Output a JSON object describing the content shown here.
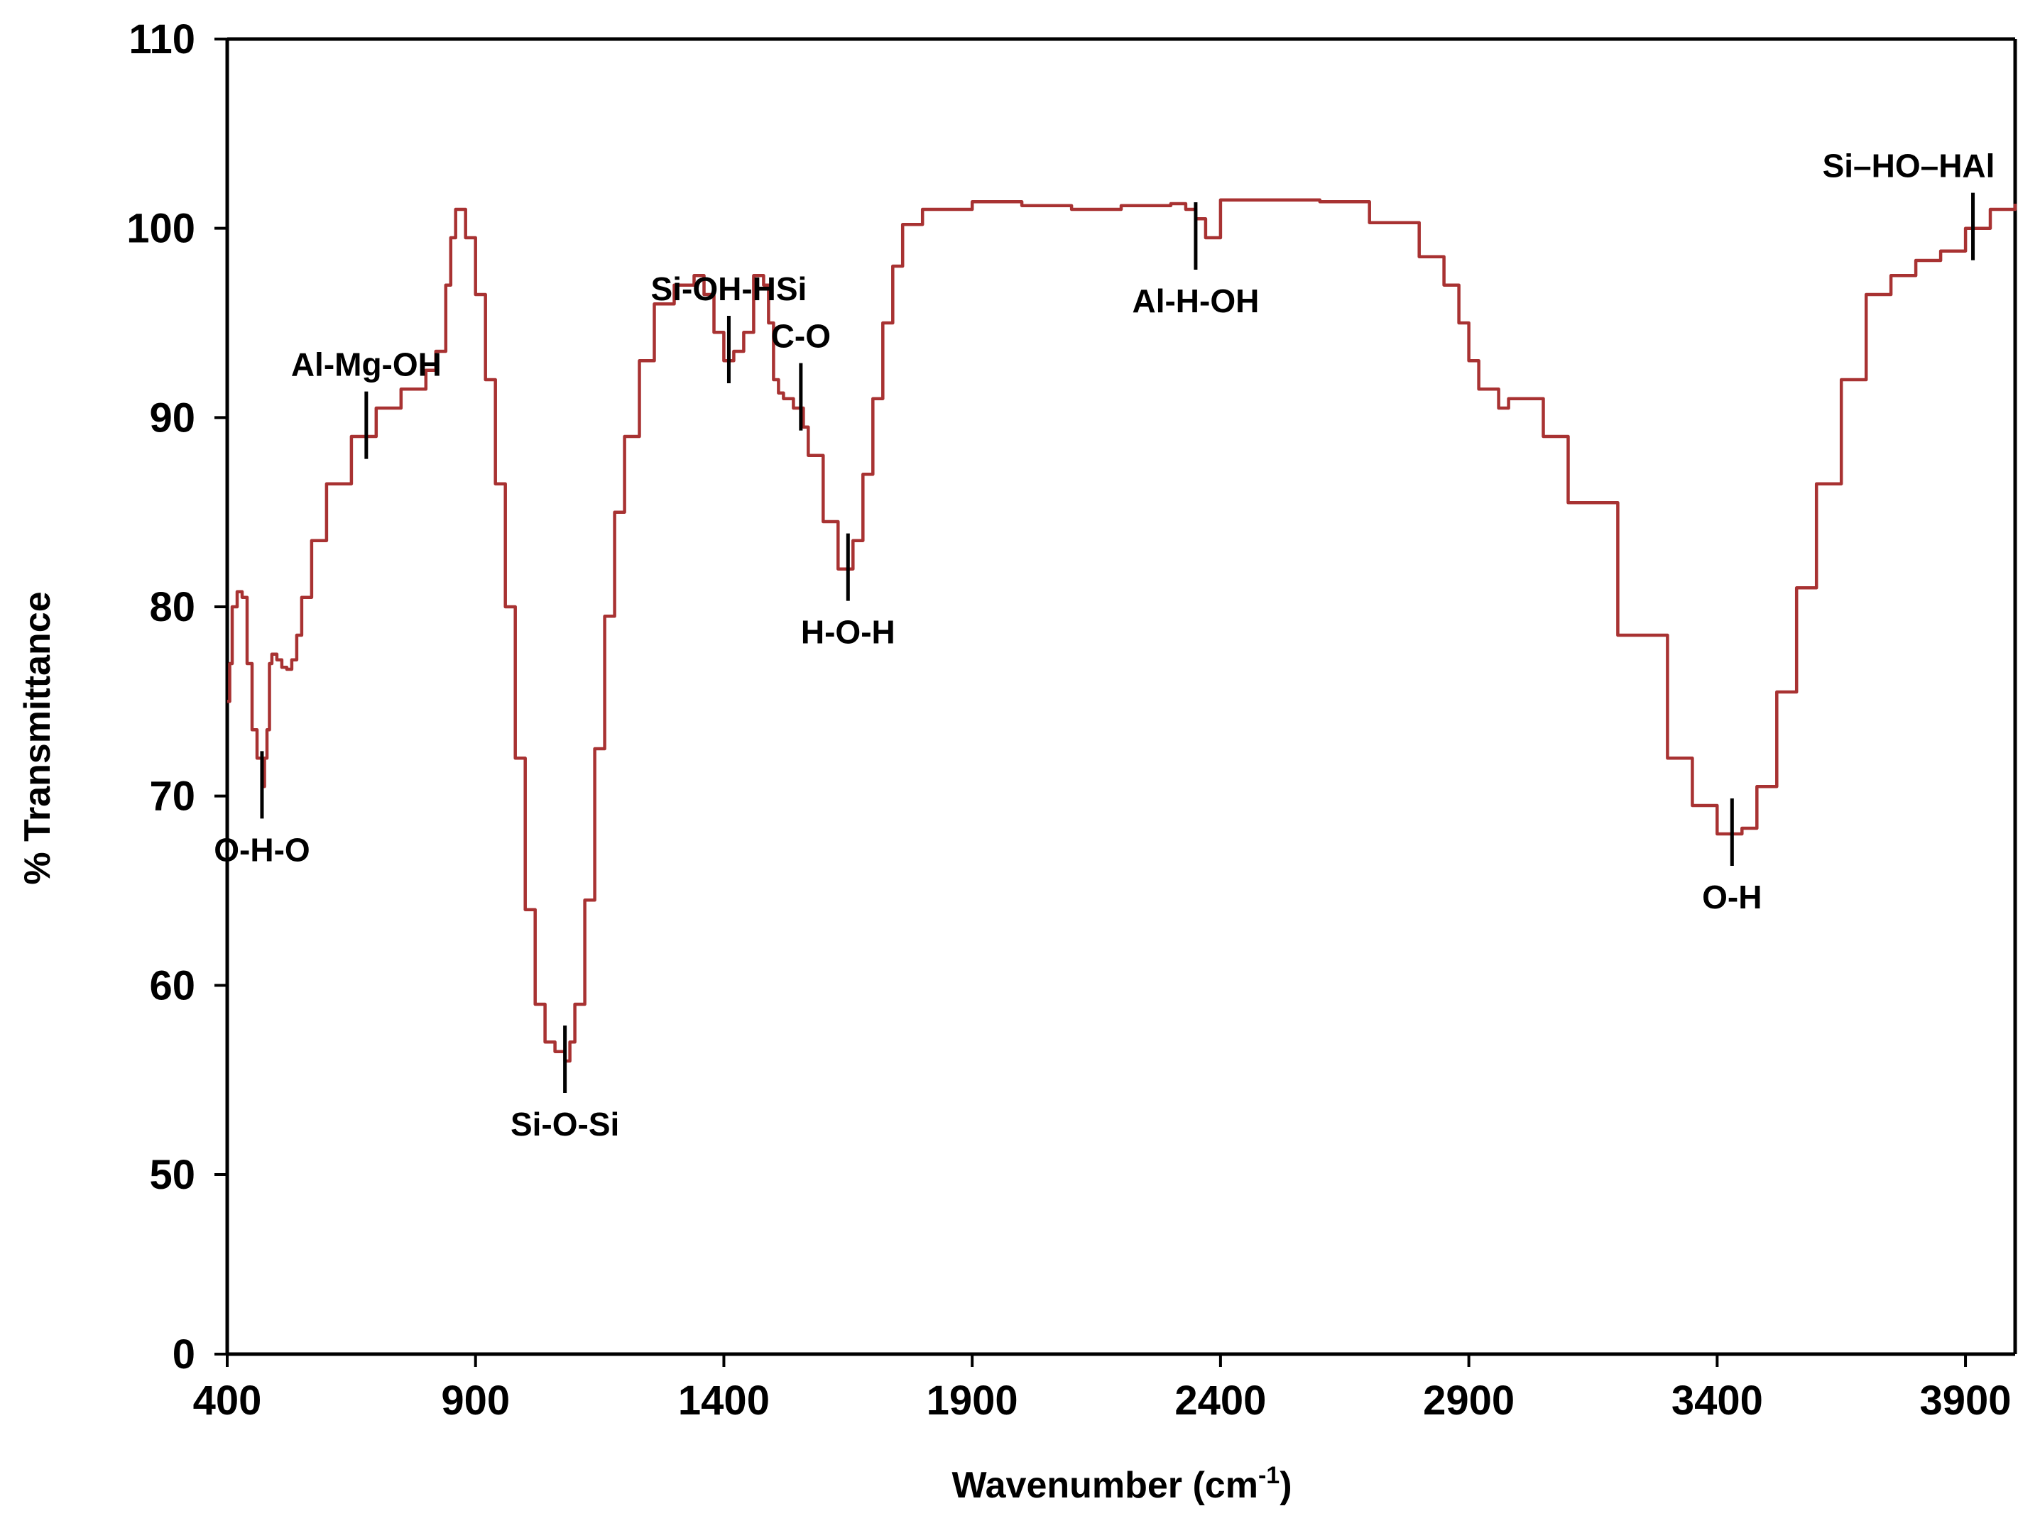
{
  "chart_data": {
    "type": "line",
    "title": "",
    "xlabel": "Wavenumber (cm",
    "xlabel_sup": "-1",
    "xlabel_end": ")",
    "ylabel": "% Transmittance",
    "xlim": [
      400,
      4000
    ],
    "x_ticks": [
      400,
      900,
      1400,
      1900,
      2400,
      2900,
      3400,
      3900
    ],
    "y_ticks": [
      0,
      50,
      60,
      70,
      80,
      90,
      100,
      110
    ],
    "y_axis_note": "broken axis: 0 followed by 50-110",
    "grid": false,
    "legend": "none",
    "colors": {
      "series": "#a83232",
      "axis": "#000000",
      "marker": "#000000"
    },
    "series": [
      {
        "name": "spectrum",
        "x": [
          400,
          405,
          410,
          420,
          430,
          440,
          450,
          460,
          470,
          475,
          480,
          485,
          490,
          500,
          510,
          520,
          530,
          540,
          550,
          570,
          600,
          650,
          700,
          750,
          800,
          820,
          840,
          850,
          860,
          870,
          880,
          900,
          920,
          940,
          960,
          980,
          1000,
          1020,
          1040,
          1060,
          1080,
          1090,
          1100,
          1120,
          1140,
          1160,
          1180,
          1200,
          1230,
          1260,
          1300,
          1340,
          1360,
          1380,
          1400,
          1420,
          1440,
          1460,
          1480,
          1490,
          1500,
          1510,
          1520,
          1540,
          1560,
          1570,
          1600,
          1630,
          1660,
          1680,
          1700,
          1720,
          1740,
          1760,
          1800,
          1900,
          2000,
          2100,
          2200,
          2300,
          2330,
          2350,
          2370,
          2400,
          2500,
          2600,
          2700,
          2800,
          2850,
          2880,
          2900,
          2920,
          2960,
          2980,
          3000,
          3050,
          3100,
          3200,
          3300,
          3350,
          3400,
          3450,
          3480,
          3520,
          3560,
          3600,
          3650,
          3700,
          3750,
          3800,
          3850,
          3900,
          3950,
          4000
        ],
        "y": [
          75,
          77,
          80,
          80.8,
          80.5,
          77,
          73.5,
          72,
          70.5,
          72,
          73.5,
          77,
          77.5,
          77.2,
          76.8,
          76.7,
          77.2,
          78.5,
          80.5,
          83.5,
          86.5,
          89,
          90.5,
          91.5,
          92.5,
          93.5,
          97,
          99.5,
          101,
          101,
          99.5,
          96.5,
          92,
          86.5,
          80,
          72,
          64,
          59,
          57,
          56.5,
          56,
          57,
          59,
          64.5,
          72.5,
          79.5,
          85,
          89,
          93,
          96,
          97,
          97.5,
          96.5,
          94.5,
          93,
          93.5,
          94.5,
          97.5,
          97,
          95,
          92,
          91.3,
          91,
          90.5,
          89.5,
          88,
          84.5,
          82,
          83.5,
          87,
          91,
          95,
          98,
          100.2,
          101,
          101.4,
          101.2,
          101,
          101.2,
          101.3,
          101,
          100.5,
          99.5,
          101.5,
          101.5,
          101.4,
          100.3,
          98.5,
          97,
          95,
          93,
          91.5,
          90.5,
          91,
          91,
          89,
          85.5,
          78.5,
          72,
          69.5,
          68,
          68.3,
          70.5,
          75.5,
          81,
          86.5,
          92,
          96.5,
          97.5,
          98.3,
          98.8,
          100,
          101,
          101.3
        ]
      }
    ],
    "annotations": [
      {
        "label": "O-H-O",
        "x": 470,
        "y": 70.5,
        "label_side": "below"
      },
      {
        "label": "Al-Mg-OH",
        "x": 680,
        "y": 89.5,
        "label_side": "above"
      },
      {
        "label": "Si-O-Si",
        "x": 1080,
        "y": 56,
        "label_side": "below"
      },
      {
        "label": "Si-OH-HSi",
        "x": 1410,
        "y": 93.5,
        "label_side": "above"
      },
      {
        "label": "C-O",
        "x": 1555,
        "y": 91,
        "label_side": "above"
      },
      {
        "label": "H-O-H",
        "x": 1650,
        "y": 82,
        "label_side": "below"
      },
      {
        "label": "Al-H-OH",
        "x": 2350,
        "y": 99.5,
        "label_side": "below"
      },
      {
        "label": "O-H",
        "x": 3430,
        "y": 68,
        "label_side": "below"
      },
      {
        "label": "Si–HO–HAl",
        "x": 3915,
        "y": 100,
        "label_side": "above"
      }
    ]
  }
}
